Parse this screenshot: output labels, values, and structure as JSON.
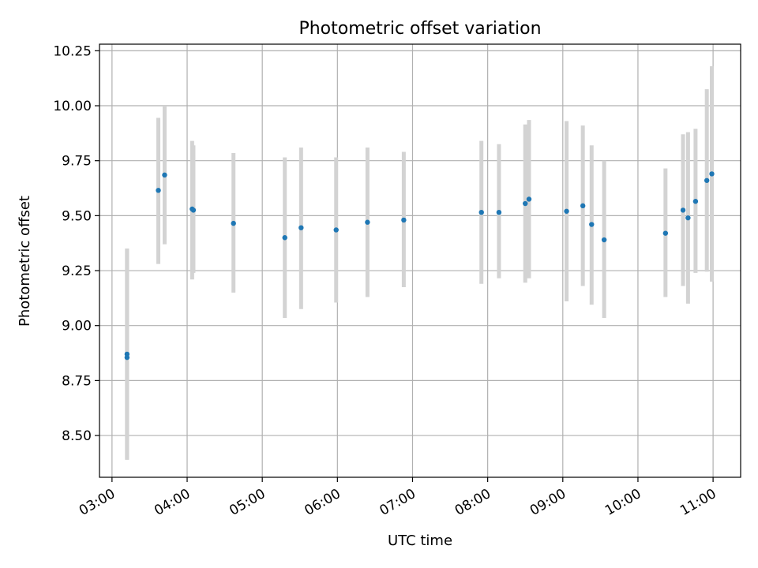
{
  "chart_data": {
    "type": "scatter",
    "title": "Photometric offset variation",
    "xlabel": "UTC time",
    "ylabel": "Photometric offset",
    "xlim": [
      "02:50",
      "11:22"
    ],
    "ylim": [
      8.31,
      10.28
    ],
    "grid": true,
    "x_ticks": [
      "03:00",
      "04:00",
      "05:00",
      "06:00",
      "07:00",
      "08:00",
      "09:00",
      "10:00",
      "11:00"
    ],
    "y_ticks": [
      "8.50",
      "8.75",
      "9.00",
      "9.25",
      "9.50",
      "9.75",
      "10.00",
      "10.25"
    ],
    "colors": {
      "points": "#1f77b4",
      "error_bars": "#d3d3d3",
      "grid": "#b0b0b0",
      "frame": "#000000"
    },
    "series": [
      {
        "points": [
          {
            "x": "03:12",
            "y": 8.87,
            "y_low": 8.39,
            "y_high": 9.35
          },
          {
            "x": "03:12",
            "y": 8.855,
            "y_low": 8.39,
            "y_high": 9.35
          },
          {
            "x": "03:37",
            "y": 9.615,
            "y_low": 9.28,
            "y_high": 9.945
          },
          {
            "x": "03:42",
            "y": 9.685,
            "y_low": 9.37,
            "y_high": 10.0
          },
          {
            "x": "04:04",
            "y": 9.53,
            "y_low": 9.21,
            "y_high": 9.84
          },
          {
            "x": "04:05",
            "y": 9.525,
            "y_low": 9.24,
            "y_high": 9.82
          },
          {
            "x": "04:37",
            "y": 9.465,
            "y_low": 9.15,
            "y_high": 9.785
          },
          {
            "x": "05:18",
            "y": 9.4,
            "y_low": 9.035,
            "y_high": 9.765
          },
          {
            "x": "05:31",
            "y": 9.445,
            "y_low": 9.075,
            "y_high": 9.81
          },
          {
            "x": "05:59",
            "y": 9.435,
            "y_low": 9.105,
            "y_high": 9.765
          },
          {
            "x": "06:24",
            "y": 9.47,
            "y_low": 9.13,
            "y_high": 9.81
          },
          {
            "x": "06:53",
            "y": 9.48,
            "y_low": 9.175,
            "y_high": 9.79
          },
          {
            "x": "07:55",
            "y": 9.515,
            "y_low": 9.19,
            "y_high": 9.84
          },
          {
            "x": "08:09",
            "y": 9.515,
            "y_low": 9.215,
            "y_high": 9.825
          },
          {
            "x": "08:30",
            "y": 9.555,
            "y_low": 9.195,
            "y_high": 9.915
          },
          {
            "x": "08:33",
            "y": 9.575,
            "y_low": 9.215,
            "y_high": 9.935
          },
          {
            "x": "09:03",
            "y": 9.52,
            "y_low": 9.11,
            "y_high": 9.93
          },
          {
            "x": "09:16",
            "y": 9.545,
            "y_low": 9.18,
            "y_high": 9.91
          },
          {
            "x": "09:23",
            "y": 9.46,
            "y_low": 9.095,
            "y_high": 9.82
          },
          {
            "x": "09:33",
            "y": 9.39,
            "y_low": 9.035,
            "y_high": 9.75
          },
          {
            "x": "10:22",
            "y": 9.42,
            "y_low": 9.13,
            "y_high": 9.715
          },
          {
            "x": "10:36",
            "y": 9.525,
            "y_low": 9.18,
            "y_high": 9.87
          },
          {
            "x": "10:40",
            "y": 9.49,
            "y_low": 9.1,
            "y_high": 9.88
          },
          {
            "x": "10:46",
            "y": 9.565,
            "y_low": 9.24,
            "y_high": 9.895
          },
          {
            "x": "10:55",
            "y": 9.66,
            "y_low": 9.245,
            "y_high": 10.075
          },
          {
            "x": "10:59",
            "y": 9.69,
            "y_low": 9.2,
            "y_high": 10.18
          }
        ]
      }
    ]
  }
}
